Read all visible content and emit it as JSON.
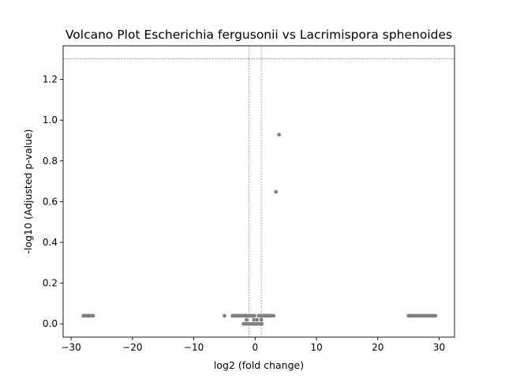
{
  "chart_data": {
    "type": "scatter",
    "title": "Volcano Plot Escherichia fergusonii vs Lacrimispora sphenoides",
    "xlabel": "log2 (fold change)",
    "ylabel": "-log10 (Adjusted p-value)",
    "xlim": [
      -31.3,
      32.5
    ],
    "ylim": [
      -0.065,
      1.365
    ],
    "xticks": [
      -30,
      -20,
      -10,
      0,
      10,
      20,
      30
    ],
    "xtick_labels": [
      "−30",
      "−20",
      "−10",
      "0",
      "10",
      "20",
      "30"
    ],
    "yticks": [
      0.0,
      0.2,
      0.4,
      0.6,
      0.8,
      1.0,
      1.2
    ],
    "ytick_labels": [
      "0.0",
      "0.2",
      "0.4",
      "0.6",
      "0.8",
      "1.0",
      "1.2"
    ],
    "threshold_lines": {
      "horizontal_y": 1.301,
      "vertical_x": [
        -1,
        1
      ]
    },
    "point_color": "#808080",
    "threshold_color": "#808080",
    "grid": false,
    "legend": "none",
    "series": [
      {
        "values": [
          [
            -28.0,
            0.04
          ],
          [
            -27.8,
            0.04
          ],
          [
            -27.6,
            0.04
          ],
          [
            -27.4,
            0.04
          ],
          [
            -27.2,
            0.04
          ],
          [
            -27.0,
            0.04
          ],
          [
            -26.6,
            0.04
          ],
          [
            -26.4,
            0.04
          ],
          [
            -5.0,
            0.04
          ],
          [
            -3.7,
            0.04
          ],
          [
            -3.5,
            0.04
          ],
          [
            -3.3,
            0.04
          ],
          [
            -3.1,
            0.04
          ],
          [
            -2.9,
            0.04
          ],
          [
            -2.7,
            0.04
          ],
          [
            -2.5,
            0.04
          ],
          [
            -2.3,
            0.04
          ],
          [
            -2.1,
            0.04
          ],
          [
            -1.9,
            0.04
          ],
          [
            -1.7,
            0.04
          ],
          [
            -1.5,
            0.04
          ],
          [
            -1.3,
            0.04
          ],
          [
            -1.1,
            0.04
          ],
          [
            -0.9,
            0.04
          ],
          [
            -0.7,
            0.04
          ],
          [
            -0.5,
            0.04
          ],
          [
            -0.3,
            0.04
          ],
          [
            -0.1,
            0.04
          ],
          [
            -1.9,
            0.0
          ],
          [
            -1.6,
            0.0
          ],
          [
            -1.3,
            0.0
          ],
          [
            -1.0,
            0.0
          ],
          [
            -0.7,
            0.0
          ],
          [
            -0.4,
            0.0
          ],
          [
            -0.1,
            0.0
          ],
          [
            0.2,
            0.0
          ],
          [
            0.5,
            0.0
          ],
          [
            0.8,
            0.0
          ],
          [
            1.0,
            0.0
          ],
          [
            1.1,
            0.0
          ],
          [
            -1.4,
            0.02
          ],
          [
            -0.2,
            0.02
          ],
          [
            0.3,
            0.02
          ],
          [
            1.0,
            0.02
          ],
          [
            0.6,
            0.04
          ],
          [
            0.8,
            0.04
          ],
          [
            1.0,
            0.04
          ],
          [
            1.2,
            0.04
          ],
          [
            1.4,
            0.04
          ],
          [
            1.6,
            0.04
          ],
          [
            1.8,
            0.04
          ],
          [
            2.0,
            0.04
          ],
          [
            2.2,
            0.04
          ],
          [
            2.4,
            0.04
          ],
          [
            2.6,
            0.04
          ],
          [
            3.0,
            0.04
          ],
          [
            3.4,
            0.648
          ],
          [
            3.9,
            0.929
          ],
          [
            25.0,
            0.04
          ],
          [
            25.3,
            0.04
          ],
          [
            25.6,
            0.04
          ],
          [
            25.9,
            0.04
          ],
          [
            26.2,
            0.04
          ],
          [
            26.5,
            0.04
          ],
          [
            26.8,
            0.04
          ],
          [
            27.1,
            0.04
          ],
          [
            27.4,
            0.04
          ],
          [
            27.7,
            0.04
          ],
          [
            28.0,
            0.04
          ],
          [
            28.3,
            0.04
          ],
          [
            28.6,
            0.04
          ],
          [
            28.9,
            0.04
          ],
          [
            29.2,
            0.04
          ],
          [
            29.4,
            0.04
          ]
        ]
      }
    ]
  }
}
